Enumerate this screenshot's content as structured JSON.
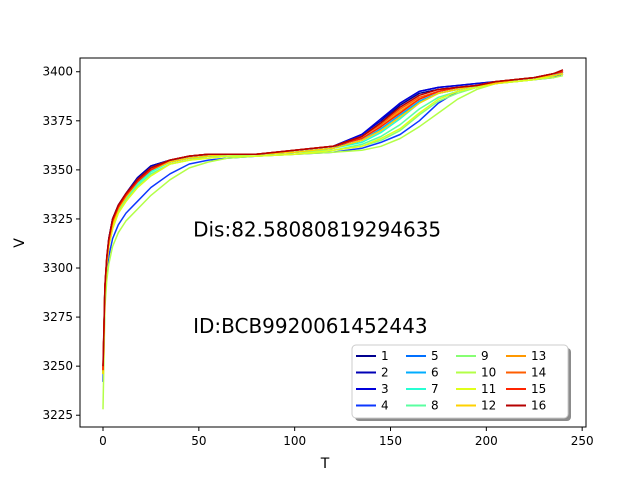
{
  "chart_data": {
    "type": "line",
    "xlabel": "T",
    "ylabel": "V",
    "xlim": [
      -12,
      252
    ],
    "ylim": [
      3219,
      3407
    ],
    "x_ticks": [
      0,
      50,
      100,
      150,
      200,
      250
    ],
    "y_ticks": [
      3225,
      3250,
      3275,
      3300,
      3325,
      3350,
      3375,
      3400
    ],
    "annotations": [
      {
        "text": "Dis:82.58080819294635",
        "x": 47,
        "y": 3316
      },
      {
        "text": "ID:BCB9920061452443",
        "x": 47,
        "y": 3267
      }
    ],
    "legend": {
      "position": "lower-right",
      "columns": 4
    },
    "x": [
      0,
      1,
      2,
      3,
      5,
      8,
      12,
      18,
      25,
      35,
      45,
      55,
      65,
      80,
      100,
      120,
      135,
      145,
      155,
      165,
      175,
      185,
      195,
      205,
      215,
      225,
      235,
      240
    ],
    "series": [
      {
        "name": "1",
        "color": "#00008f",
        "values": [
          3246,
          3290,
          3305,
          3315,
          3325,
          3332,
          3338,
          3346,
          3352,
          3355,
          3357,
          3358,
          3358,
          3358,
          3359,
          3361,
          3367,
          3374,
          3383,
          3389,
          3391,
          3392,
          3393,
          3395,
          3396,
          3397,
          3399,
          3400
        ]
      },
      {
        "name": "2",
        "color": "#0000b6",
        "values": [
          3246,
          3290,
          3305,
          3315,
          3325,
          3332,
          3338,
          3346,
          3352,
          3355,
          3357,
          3358,
          3358,
          3358,
          3360,
          3362,
          3368,
          3375,
          3384,
          3390,
          3392,
          3393,
          3394,
          3395,
          3396,
          3397,
          3399,
          3400
        ]
      },
      {
        "name": "3",
        "color": "#0000db",
        "values": [
          3246,
          3289,
          3304,
          3314,
          3324,
          3331,
          3337,
          3345,
          3351,
          3355,
          3357,
          3358,
          3358,
          3358,
          3360,
          3362,
          3368,
          3376,
          3384,
          3390,
          3392,
          3393,
          3394,
          3395,
          3396,
          3397,
          3399,
          3400
        ]
      },
      {
        "name": "4",
        "color": "#0c37ff",
        "values": [
          3242,
          3284,
          3298,
          3306,
          3315,
          3322,
          3328,
          3334,
          3341,
          3348,
          3353,
          3355,
          3356,
          3357,
          3358,
          3359,
          3361,
          3364,
          3368,
          3375,
          3384,
          3390,
          3392,
          3394,
          3395,
          3396,
          3397,
          3399
        ]
      },
      {
        "name": "5",
        "color": "#0070ff",
        "values": [
          3246,
          3289,
          3303,
          3312,
          3322,
          3330,
          3336,
          3344,
          3350,
          3354,
          3356,
          3357,
          3358,
          3358,
          3359,
          3361,
          3365,
          3370,
          3377,
          3385,
          3389,
          3391,
          3393,
          3394,
          3396,
          3397,
          3398,
          3400
        ]
      },
      {
        "name": "6",
        "color": "#00adff",
        "values": [
          3246,
          3289,
          3303,
          3312,
          3322,
          3330,
          3336,
          3344,
          3350,
          3354,
          3356,
          3357,
          3358,
          3358,
          3359,
          3361,
          3365,
          3371,
          3378,
          3385,
          3389,
          3391,
          3393,
          3394,
          3396,
          3397,
          3398,
          3400
        ]
      },
      {
        "name": "7",
        "color": "#26ffd3",
        "values": [
          3246,
          3289,
          3303,
          3312,
          3322,
          3329,
          3335,
          3343,
          3349,
          3354,
          3356,
          3357,
          3358,
          3358,
          3359,
          3361,
          3364,
          3369,
          3376,
          3384,
          3389,
          3391,
          3393,
          3394,
          3396,
          3397,
          3398,
          3399
        ]
      },
      {
        "name": "8",
        "color": "#5affa0",
        "values": [
          3246,
          3289,
          3303,
          3312,
          3321,
          3329,
          3335,
          3342,
          3348,
          3353,
          3355,
          3357,
          3357,
          3358,
          3359,
          3360,
          3363,
          3367,
          3373,
          3381,
          3387,
          3390,
          3392,
          3394,
          3395,
          3396,
          3398,
          3399
        ]
      },
      {
        "name": "9",
        "color": "#87ff73",
        "values": [
          3246,
          3288,
          3302,
          3311,
          3320,
          3328,
          3334,
          3341,
          3347,
          3353,
          3355,
          3356,
          3357,
          3357,
          3358,
          3360,
          3362,
          3365,
          3370,
          3378,
          3385,
          3389,
          3392,
          3394,
          3395,
          3396,
          3398,
          3399
        ]
      },
      {
        "name": "10",
        "color": "#b3ff47",
        "values": [
          3228,
          3280,
          3294,
          3302,
          3311,
          3318,
          3324,
          3330,
          3337,
          3345,
          3351,
          3354,
          3356,
          3357,
          3358,
          3359,
          3360,
          3362,
          3366,
          3372,
          3379,
          3386,
          3391,
          3394,
          3395,
          3396,
          3397,
          3398
        ]
      },
      {
        "name": "11",
        "color": "#e0ff1a",
        "values": [
          3246,
          3288,
          3302,
          3311,
          3320,
          3328,
          3334,
          3341,
          3347,
          3353,
          3355,
          3356,
          3357,
          3357,
          3358,
          3360,
          3362,
          3366,
          3371,
          3379,
          3386,
          3390,
          3392,
          3394,
          3395,
          3396,
          3398,
          3399
        ]
      },
      {
        "name": "12",
        "color": "#ffd200",
        "values": [
          3246,
          3289,
          3303,
          3312,
          3322,
          3330,
          3336,
          3344,
          3350,
          3354,
          3356,
          3357,
          3358,
          3358,
          3359,
          3361,
          3365,
          3370,
          3377,
          3384,
          3389,
          3391,
          3393,
          3394,
          3396,
          3397,
          3398,
          3399
        ]
      },
      {
        "name": "13",
        "color": "#ff9800",
        "values": [
          3248,
          3290,
          3305,
          3314,
          3324,
          3331,
          3337,
          3345,
          3351,
          3355,
          3357,
          3358,
          3358,
          3358,
          3360,
          3362,
          3366,
          3372,
          3380,
          3386,
          3390,
          3392,
          3393,
          3395,
          3396,
          3397,
          3399,
          3400
        ]
      },
      {
        "name": "14",
        "color": "#ff5e00",
        "values": [
          3248,
          3290,
          3305,
          3314,
          3324,
          3331,
          3337,
          3345,
          3351,
          3355,
          3357,
          3358,
          3358,
          3358,
          3360,
          3362,
          3367,
          3373,
          3381,
          3387,
          3390,
          3392,
          3393,
          3395,
          3396,
          3397,
          3399,
          3400
        ]
      },
      {
        "name": "15",
        "color": "#ff2400",
        "values": [
          3248,
          3290,
          3305,
          3314,
          3324,
          3331,
          3337,
          3344,
          3350,
          3355,
          3357,
          3358,
          3358,
          3358,
          3360,
          3362,
          3366,
          3372,
          3379,
          3386,
          3390,
          3392,
          3393,
          3395,
          3396,
          3397,
          3399,
          3400
        ]
      },
      {
        "name": "16",
        "color": "#b60000",
        "values": [
          3250,
          3291,
          3306,
          3315,
          3325,
          3332,
          3338,
          3345,
          3351,
          3355,
          3357,
          3358,
          3358,
          3358,
          3360,
          3362,
          3367,
          3374,
          3382,
          3388,
          3391,
          3392,
          3393,
          3395,
          3396,
          3397,
          3399,
          3401
        ]
      }
    ]
  }
}
